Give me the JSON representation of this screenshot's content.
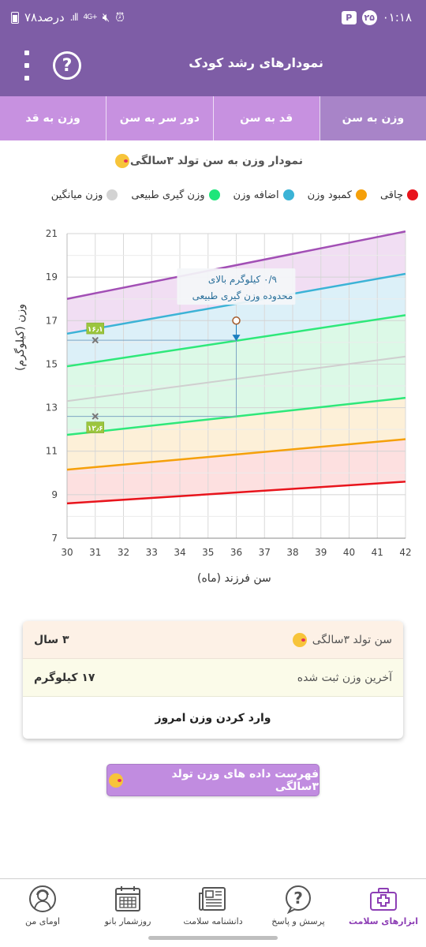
{
  "status_bar": {
    "time": "۰۱:۱۸",
    "badge_num": "۲۵",
    "badge_letter": "P",
    "network": "4G+",
    "signal": ".ıll",
    "battery": "۷۸درصد"
  },
  "app_bar": {
    "title": "نمودارهای رشد کودک",
    "help_glyph": "?"
  },
  "tabs": [
    {
      "label": "وزن به سن",
      "active": true
    },
    {
      "label": "قد به سن",
      "active": false
    },
    {
      "label": "دور سر به سن",
      "active": false
    },
    {
      "label": "وزن به قد",
      "active": false
    }
  ],
  "chart_title": "نمودار وزن به سن تولد ۳سالگی",
  "legend": [
    {
      "label": "چاقی",
      "color": "#e8141c"
    },
    {
      "label": "کمبود وزن",
      "color": "#f5a00a"
    },
    {
      "label": "اضافه وزن",
      "color": "#3bb3d6"
    },
    {
      "label": "وزن گیری طبیعی",
      "color": "#1ee67a"
    },
    {
      "label": "وزن میانگین",
      "color": "#d3d3d3"
    }
  ],
  "chart_data": {
    "type": "line",
    "xlabel": "سن فرزند (ماه)",
    "ylabel": "وزن (کیلوگرم)",
    "xlim": [
      30,
      42
    ],
    "ylim": [
      7,
      21
    ],
    "x_ticks": [
      30,
      31,
      32,
      33,
      34,
      35,
      36,
      37,
      38,
      39,
      40,
      41,
      42
    ],
    "y_ticks": [
      7,
      9,
      11,
      13,
      15,
      17,
      19,
      21
    ],
    "grid": true,
    "curves": [
      {
        "key": "obese",
        "color": "#a24fb5",
        "points": [
          [
            30,
            18.0
          ],
          [
            42,
            21.1
          ]
        ]
      },
      {
        "key": "overweight",
        "color": "#3bb3d6",
        "points": [
          [
            30,
            16.4
          ],
          [
            42,
            19.15
          ]
        ]
      },
      {
        "key": "normal_top",
        "color": "#2ee87a",
        "points": [
          [
            30,
            14.9
          ],
          [
            42,
            17.25
          ]
        ]
      },
      {
        "key": "median",
        "color": "#cfcfcf",
        "points": [
          [
            30,
            13.3
          ],
          [
            42,
            15.35
          ]
        ]
      },
      {
        "key": "normal_bottom",
        "color": "#2ee87a",
        "points": [
          [
            30,
            11.75
          ],
          [
            42,
            13.45
          ]
        ]
      },
      {
        "key": "underweight",
        "color": "#f5a00a",
        "points": [
          [
            30,
            10.15
          ],
          [
            42,
            11.55
          ]
        ]
      },
      {
        "key": "severe",
        "color": "#e8141c",
        "points": [
          [
            30,
            8.6
          ],
          [
            42,
            9.6
          ]
        ]
      }
    ],
    "bands": [
      {
        "from": "obese",
        "to": "overweight",
        "color": "#f1def3"
      },
      {
        "from": "overweight",
        "to": "normal_top",
        "color": "#dcf0f8"
      },
      {
        "from": "normal_top",
        "to": "normal_bottom",
        "color": "#dcf9e7"
      },
      {
        "from": "normal_bottom",
        "to": "underweight",
        "color": "#fdf0d8"
      },
      {
        "from": "underweight",
        "to": "severe",
        "color": "#fde0e0"
      }
    ],
    "markers": [
      {
        "x": 31,
        "y": 16.1,
        "label": "۱۶٫۱"
      },
      {
        "x": 31,
        "y": 12.6,
        "label": "۱۲٫۶"
      }
    ],
    "current_point": {
      "x": 36,
      "y": 17
    },
    "normal_upper_at_current": 16.1,
    "annotation": {
      "line1": "۰/۹ کیلوگرم بالای",
      "line2": "محدوده وزن گیری طبیعی"
    }
  },
  "info": {
    "age_label": "سن تولد ۳سالگی",
    "age_value": "۳ سال",
    "weight_label": "آخرین وزن ثبت شده",
    "weight_value": "۱۷ کیلوگرم",
    "enter_label": "وارد کردن وزن امروز"
  },
  "list_button": "فهرست داده های وزن تولد ۳سالگی",
  "nav": [
    {
      "label": "ابزارهای سلامت",
      "icon": "medical-kit-icon",
      "active": true
    },
    {
      "label": "پرسش و پاسخ",
      "icon": "question-bubble-icon",
      "active": false
    },
    {
      "label": "دانشنامه سلامت",
      "icon": "newspaper-icon",
      "active": false
    },
    {
      "label": "روزشمار بانو",
      "icon": "calendar-icon",
      "active": false
    },
    {
      "label": "اومای من",
      "icon": "profile-icon",
      "active": false
    }
  ]
}
